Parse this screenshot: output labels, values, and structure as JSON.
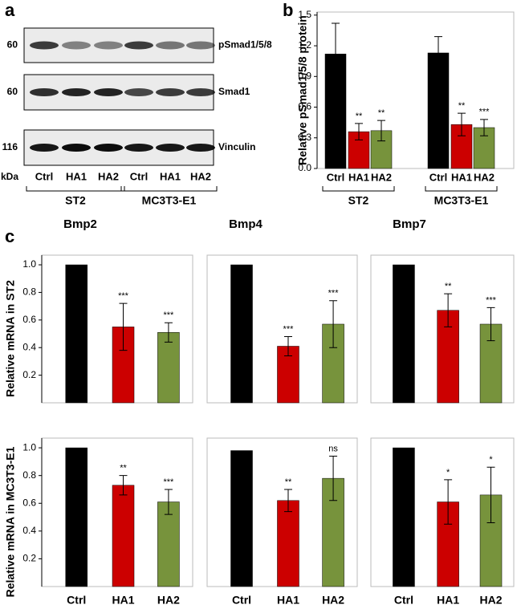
{
  "blot": {
    "panel_label": "a",
    "unit": "kDa",
    "rows": [
      {
        "mw": 60,
        "label": "pSmad1/5/8"
      },
      {
        "mw": 60,
        "label": "Smad1"
      },
      {
        "mw": 116,
        "label": "Vinculin"
      }
    ],
    "lanes": [
      "Ctrl",
      "HA1",
      "HA2",
      "Ctrl",
      "HA1",
      "HA2"
    ],
    "groups": [
      "ST2",
      "MC3T3-E1"
    ]
  },
  "chart_data": [
    {
      "type": "bar",
      "panel_label": "b",
      "ylabel": "Relative pSmad1/5/8 protein",
      "categories": [
        "Ctrl",
        "HA1",
        "HA2",
        "Ctrl",
        "HA1",
        "HA2"
      ],
      "group_labels": [
        "ST2",
        "MC3T3-E1"
      ],
      "values": [
        1.12,
        0.36,
        0.37,
        1.13,
        0.43,
        0.4
      ],
      "errors": [
        0.3,
        0.08,
        0.1,
        0.16,
        0.11,
        0.08
      ],
      "annotations": [
        null,
        "**",
        "**",
        null,
        "**",
        "***"
      ],
      "colors": [
        "#000000",
        "#cc0000",
        "#77933c"
      ],
      "ylim": [
        0,
        1.53
      ],
      "yticks": [
        {
          "value": 0,
          "label": "0.0"
        },
        0.3,
        0.6,
        0.9,
        1.2,
        1.5
      ]
    },
    {
      "type": "bar",
      "panel_label": "c",
      "title": "Bmp2",
      "ylabel": "Relative mRNA in ST2",
      "categories": [
        null,
        null,
        null
      ],
      "values": [
        1.0,
        0.55,
        0.51
      ],
      "errors": [
        null,
        0.17,
        0.07
      ],
      "annotations": [
        null,
        "***",
        "***"
      ],
      "colors": [
        "#000000",
        "#cc0000",
        "#77933c"
      ],
      "ylim": [
        0,
        1.07
      ],
      "yticks": [
        0.2,
        0.4,
        0.6,
        0.8,
        {
          "value": 1,
          "label": "1.0"
        }
      ]
    },
    {
      "type": "bar",
      "title": "Bmp4",
      "categories": [
        null,
        null,
        null
      ],
      "values": [
        1.0,
        0.41,
        0.57
      ],
      "errors": [
        null,
        0.07,
        0.17
      ],
      "annotations": [
        null,
        "***",
        "***"
      ],
      "colors": [
        "#000000",
        "#cc0000",
        "#77933c"
      ],
      "ylim": [
        0,
        1.07
      ]
    },
    {
      "type": "bar",
      "title": "Bmp7",
      "categories": [
        null,
        null,
        null
      ],
      "values": [
        1.0,
        0.67,
        0.57
      ],
      "errors": [
        null,
        0.12,
        0.12
      ],
      "annotations": [
        null,
        "**",
        "***"
      ],
      "colors": [
        "#000000",
        "#cc0000",
        "#77933c"
      ],
      "ylim": [
        0,
        1.07
      ]
    },
    {
      "type": "bar",
      "ylabel": "Relative mRNA in MC3T3-E1",
      "categories": [
        "Ctrl",
        "HA1",
        "HA2"
      ],
      "values": [
        1.0,
        0.73,
        0.61
      ],
      "errors": [
        null,
        0.07,
        0.09
      ],
      "annotations": [
        null,
        "**",
        "***"
      ],
      "colors": [
        "#000000",
        "#cc0000",
        "#77933c"
      ],
      "ylim": [
        0,
        1.07
      ],
      "yticks": [
        0.2,
        0.4,
        0.6,
        0.8,
        {
          "value": 1,
          "label": "1.0"
        }
      ]
    },
    {
      "type": "bar",
      "categories": [
        "Ctrl",
        "HA1",
        "HA2"
      ],
      "values": [
        0.98,
        0.62,
        0.78
      ],
      "errors": [
        null,
        0.08,
        0.16
      ],
      "annotations": [
        null,
        "**",
        "ns"
      ],
      "colors": [
        "#000000",
        "#cc0000",
        "#77933c"
      ],
      "ylim": [
        0,
        1.07
      ]
    },
    {
      "type": "bar",
      "categories": [
        "Ctrl",
        "HA1",
        "HA2"
      ],
      "values": [
        1.0,
        0.61,
        0.66
      ],
      "errors": [
        null,
        0.16,
        0.2
      ],
      "annotations": [
        null,
        "*",
        "*"
      ],
      "colors": [
        "#000000",
        "#cc0000",
        "#77933c"
      ],
      "ylim": [
        0,
        1.07
      ]
    }
  ]
}
